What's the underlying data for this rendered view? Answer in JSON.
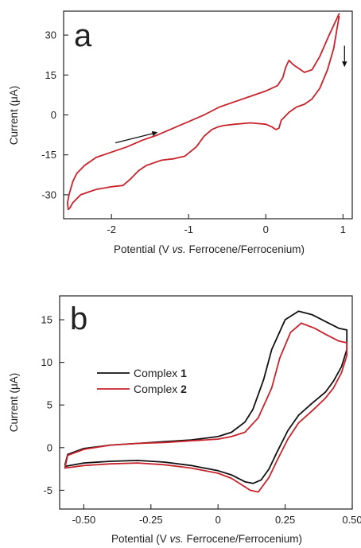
{
  "chart_data": [
    {
      "type": "line",
      "panel_label": "a",
      "xlabel": {
        "pre": "Potential (V ",
        "italic": "vs.",
        "post": " Ferrocene/Ferrocenium)"
      },
      "ylabel": {
        "pre": "Current (",
        "mu": "μ",
        "post": "A)"
      },
      "xlim": [
        -2.62,
        1.12
      ],
      "ylim": [
        -39,
        39
      ],
      "xticks": [
        -2,
        -1,
        0,
        1
      ],
      "xtick_labels": [
        "-2",
        "-1",
        "0",
        "1"
      ],
      "yticks": [
        -30,
        -15,
        0,
        15,
        30
      ],
      "ytick_labels": [
        "-30",
        "-15",
        "0",
        "15",
        "30"
      ],
      "grid": false,
      "series": [
        {
          "color": "#c8232b",
          "x": [
            0.95,
            0.82,
            0.7,
            0.6,
            0.5,
            0.45,
            0.4,
            0.35,
            0.3,
            0.26,
            0.22,
            0.15,
            0.0,
            -0.2,
            -0.4,
            -0.6,
            -0.8,
            -1.0,
            -1.2,
            -1.4,
            -1.6,
            -1.8,
            -2.0,
            -2.2,
            -2.35,
            -2.45,
            -2.5,
            -2.55,
            -2.57,
            -2.56,
            -2.54,
            -2.5,
            -2.45,
            -2.4,
            -2.3,
            -2.2,
            -2.0,
            -1.85,
            -1.75,
            -1.65,
            -1.55,
            -1.45,
            -1.35,
            -1.2,
            -1.05,
            -0.9,
            -0.8,
            -0.7,
            -0.62,
            -0.55,
            -0.4,
            -0.2,
            0.0,
            0.08,
            0.13,
            0.17,
            0.2,
            0.25,
            0.3,
            0.4,
            0.5,
            0.6,
            0.7,
            0.8,
            0.88,
            0.92,
            0.95
          ],
          "y": [
            38,
            30,
            22,
            17,
            16,
            17,
            18,
            19,
            20.5,
            18,
            14,
            11,
            9,
            7,
            5,
            3,
            0,
            -2.5,
            -5,
            -7.5,
            -9.5,
            -12,
            -14,
            -16,
            -19,
            -22,
            -25,
            -30,
            -33,
            -35.5,
            -35,
            -33,
            -31.5,
            -30,
            -29,
            -28,
            -27,
            -26.5,
            -24,
            -21,
            -19,
            -18,
            -17,
            -16.5,
            -15.5,
            -12,
            -8,
            -5.5,
            -4.5,
            -4,
            -3.5,
            -3,
            -3.5,
            -4.5,
            -5.5,
            -5,
            -2,
            -0.5,
            1,
            3,
            4,
            6,
            10,
            17,
            25,
            32,
            37
          ]
        }
      ],
      "arrows": [
        {
          "from": [
            -1.95,
            -10.5
          ],
          "to": [
            -1.4,
            -6.5
          ]
        },
        {
          "from": [
            1.02,
            26
          ],
          "to": [
            1.02,
            18
          ]
        }
      ]
    },
    {
      "type": "line",
      "panel_label": "b",
      "xlabel": {
        "pre": "Potential (V ",
        "italic": "vs.",
        "post": " Ferrocene/Ferrocenium)"
      },
      "ylabel": {
        "pre": "Current (",
        "mu": "μ",
        "post": "A)"
      },
      "xlim": [
        -0.59,
        0.5
      ],
      "ylim": [
        -7.2,
        17.8
      ],
      "xticks": [
        -0.5,
        -0.25,
        0,
        0.25,
        0.5
      ],
      "xtick_labels": [
        "-0.50",
        "-0.25",
        "0",
        "0.25",
        "0.50"
      ],
      "yticks": [
        -5,
        0,
        5,
        10,
        15
      ],
      "ytick_labels": [
        "-5",
        "0",
        "5",
        "10",
        "15"
      ],
      "grid": false,
      "legend_position": "middle-left",
      "series": [
        {
          "name_prefix": "Complex ",
          "name_bold": "1",
          "color": "#111111",
          "x": [
            -0.57,
            -0.56,
            -0.5,
            -0.4,
            -0.3,
            -0.2,
            -0.1,
            0.0,
            0.05,
            0.1,
            0.13,
            0.17,
            0.2,
            0.25,
            0.3,
            0.35,
            0.4,
            0.45,
            0.48,
            0.48,
            0.46,
            0.43,
            0.4,
            0.35,
            0.3,
            0.26,
            0.22,
            0.19,
            0.16,
            0.13,
            0.1,
            0.05,
            0.0,
            -0.1,
            -0.2,
            -0.3,
            -0.4,
            -0.5,
            -0.57
          ],
          "y": [
            -2.0,
            -0.8,
            -0.1,
            0.3,
            0.5,
            0.7,
            0.9,
            1.3,
            1.8,
            3.0,
            4.5,
            8.0,
            11.5,
            15.0,
            16.0,
            15.6,
            14.8,
            14.0,
            13.8,
            11.5,
            9.5,
            7.8,
            6.5,
            5.2,
            3.8,
            2.0,
            -0.5,
            -2.5,
            -3.8,
            -4.2,
            -4.0,
            -3.2,
            -2.7,
            -2.1,
            -1.7,
            -1.5,
            -1.6,
            -1.8,
            -2.2
          ]
        },
        {
          "name_prefix": "Complex ",
          "name_bold": "2",
          "color": "#c8232b",
          "x": [
            -0.57,
            -0.56,
            -0.5,
            -0.4,
            -0.3,
            -0.2,
            -0.1,
            0.0,
            0.05,
            0.1,
            0.15,
            0.2,
            0.23,
            0.27,
            0.31,
            0.36,
            0.4,
            0.45,
            0.48,
            0.48,
            0.46,
            0.43,
            0.4,
            0.35,
            0.3,
            0.26,
            0.22,
            0.19,
            0.15,
            0.12,
            0.08,
            0.05,
            0.0,
            -0.1,
            -0.2,
            -0.3,
            -0.4,
            -0.5,
            -0.57
          ],
          "y": [
            -2.3,
            -0.9,
            -0.2,
            0.3,
            0.5,
            0.6,
            0.8,
            1.0,
            1.3,
            1.8,
            3.5,
            7.0,
            10.5,
            13.5,
            14.6,
            14.0,
            13.3,
            12.5,
            12.3,
            10.8,
            8.8,
            7.0,
            5.8,
            4.3,
            2.9,
            1.0,
            -1.5,
            -3.5,
            -5.2,
            -5.0,
            -4.2,
            -3.6,
            -3.0,
            -2.4,
            -2.0,
            -1.8,
            -1.9,
            -2.1,
            -2.4
          ]
        }
      ]
    }
  ]
}
